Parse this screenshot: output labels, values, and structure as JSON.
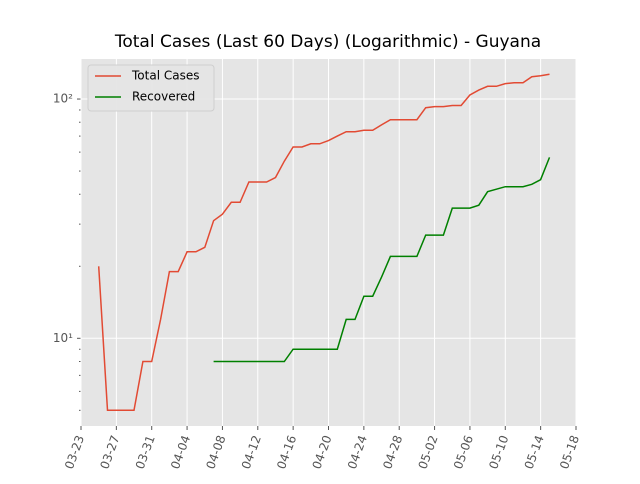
{
  "chart_data": {
    "type": "line",
    "title": "Total Cases (Last 60 Days) (Logarithmic) - Guyana",
    "x": [
      "03-25",
      "03-26",
      "03-27",
      "03-28",
      "03-29",
      "03-30",
      "03-31",
      "04-01",
      "04-02",
      "04-03",
      "04-04",
      "04-05",
      "04-06",
      "04-07",
      "04-08",
      "04-09",
      "04-10",
      "04-11",
      "04-12",
      "04-13",
      "04-14",
      "04-15",
      "04-16",
      "04-17",
      "04-18",
      "04-19",
      "04-20",
      "04-21",
      "04-22",
      "04-23",
      "04-24",
      "04-25",
      "04-26",
      "04-27",
      "04-28",
      "04-29",
      "04-30",
      "05-01",
      "05-02",
      "05-03",
      "05-04",
      "05-05",
      "05-06",
      "05-07",
      "05-08",
      "05-09",
      "05-10",
      "05-11",
      "05-12",
      "05-13",
      "05-14",
      "05-15"
    ],
    "series": [
      {
        "name": "Total Cases",
        "color": "#E24A33",
        "values": [
          20,
          5,
          5,
          5,
          5,
          8,
          8,
          12,
          19,
          19,
          23,
          23,
          24,
          31,
          33,
          37,
          37,
          45,
          45,
          45,
          47,
          55,
          63,
          63,
          65,
          65,
          67,
          70,
          73,
          73,
          74,
          74,
          78,
          82,
          82,
          82,
          82,
          92,
          93,
          93,
          94,
          94,
          104,
          109,
          113,
          113,
          116,
          117,
          117,
          124,
          125,
          127
        ]
      },
      {
        "name": "Recovered",
        "color": "#008000",
        "values": [
          null,
          null,
          null,
          null,
          null,
          null,
          null,
          null,
          null,
          null,
          null,
          null,
          null,
          8,
          8,
          8,
          8,
          8,
          8,
          8,
          8,
          8,
          9,
          9,
          9,
          9,
          9,
          9,
          12,
          12,
          15,
          15,
          18,
          22,
          22,
          22,
          22,
          27,
          27,
          27,
          35,
          35,
          35,
          36,
          41,
          42,
          43,
          43,
          43,
          44,
          46,
          57
        ]
      }
    ],
    "xlim": [
      "03-23",
      "05-18"
    ],
    "xticks": [
      "03-23",
      "03-27",
      "03-31",
      "04-04",
      "04-08",
      "04-12",
      "04-16",
      "04-20",
      "04-24",
      "04-28",
      "05-02",
      "05-06",
      "05-10",
      "05-14",
      "05-18"
    ],
    "ylim": [
      4.3,
      147
    ],
    "log_scale": true,
    "yticks": [
      {
        "value": 10,
        "label": "10¹"
      },
      {
        "value": 100,
        "label": "10²"
      }
    ],
    "yminorticks": [
      5,
      6,
      7,
      8,
      9,
      20,
      30,
      40,
      50,
      60,
      70,
      80,
      90
    ],
    "grid": true,
    "legend": "upper-left"
  }
}
